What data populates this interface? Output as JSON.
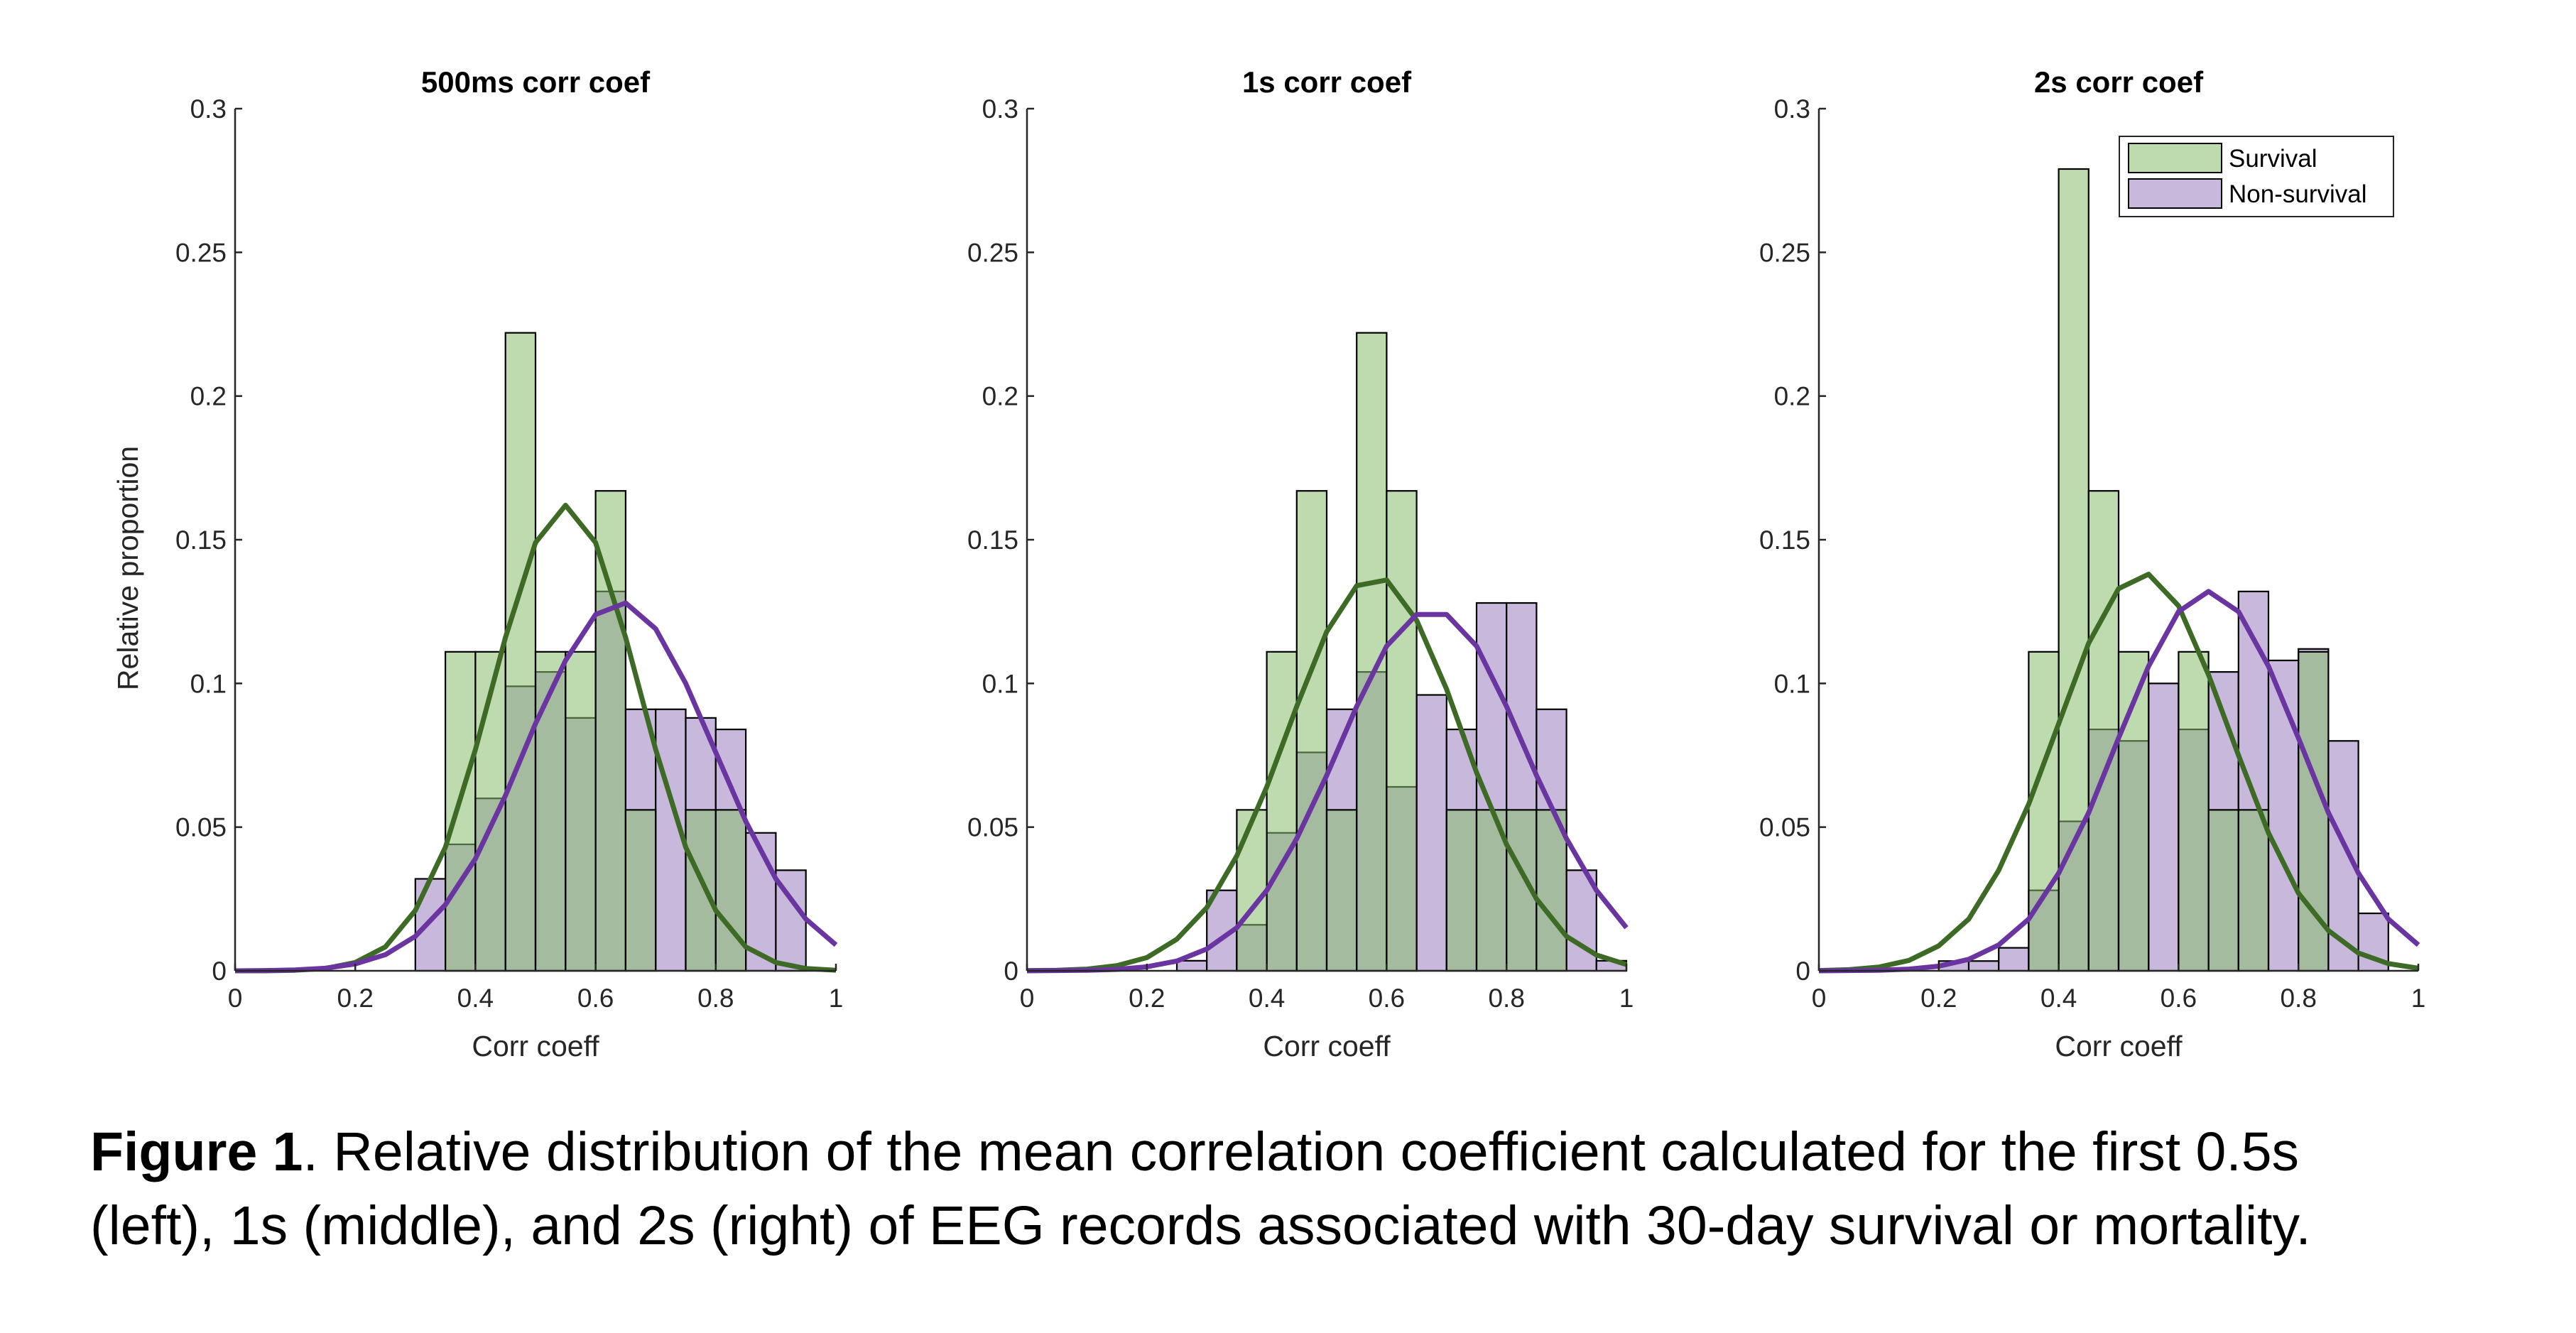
{
  "colors": {
    "survival_fill": "#86bd6e",
    "nonsurvival_fill": "#c8b8dc",
    "survival_curve": "#3d6b25",
    "nonsurvival_curve": "#6a35a0",
    "axis": "#262626"
  },
  "chart_data": [
    {
      "type": "bar",
      "title": "500ms corr coef",
      "xlabel": "Corr coeff",
      "ylabel": "Relative proportion",
      "xlim": [
        0,
        1
      ],
      "ylim": [
        0,
        0.3
      ],
      "xticks": [
        "0",
        "0.2",
        "0.4",
        "0.6",
        "0.8",
        "1"
      ],
      "yticks": [
        "0",
        "0.05",
        "0.1",
        "0.15",
        "0.2",
        "0.25",
        "0.3"
      ],
      "grid": false,
      "bin_width": 0.05,
      "bin_starts": [
        0.3,
        0.35,
        0.4,
        0.45,
        0.5,
        0.55,
        0.6,
        0.65,
        0.7,
        0.75,
        0.8,
        0.85,
        0.9
      ],
      "series": [
        {
          "name": "Survival",
          "values": [
            0,
            0.111,
            0.111,
            0.222,
            0.111,
            0.111,
            0.167,
            0.056,
            0,
            0.056,
            0.056,
            0,
            0
          ]
        },
        {
          "name": "Non-survival",
          "values": [
            0.032,
            0.044,
            0.06,
            0.099,
            0.104,
            0.088,
            0.132,
            0.091,
            0.091,
            0.088,
            0.084,
            0.048,
            0.035
          ]
        }
      ],
      "fit_x": [
        0,
        0.05,
        0.1,
        0.15,
        0.2,
        0.25,
        0.3,
        0.35,
        0.4,
        0.45,
        0.5,
        0.55,
        0.6,
        0.65,
        0.7,
        0.75,
        0.8,
        0.85,
        0.9,
        0.95,
        1
      ],
      "fits": [
        {
          "series": "Survival",
          "y": [
            0,
            0,
            0.0002,
            0.0008,
            0.0029,
            0.0083,
            0.021,
            0.043,
            0.077,
            0.116,
            0.149,
            0.162,
            0.149,
            0.116,
            0.077,
            0.043,
            0.021,
            0.0083,
            0.0029,
            0.0008,
            0.0002
          ]
        },
        {
          "series": "Non-survival",
          "y": [
            0,
            0.0001,
            0.0003,
            0.0009,
            0.0024,
            0.0056,
            0.012,
            0.023,
            0.039,
            0.061,
            0.086,
            0.108,
            0.124,
            0.128,
            0.119,
            0.1,
            0.076,
            0.052,
            0.032,
            0.018,
            0.009
          ]
        }
      ]
    },
    {
      "type": "bar",
      "title": "1s corr coef",
      "xlabel": "Corr coeff",
      "ylabel": "",
      "xlim": [
        0,
        1
      ],
      "ylim": [
        0,
        0.3
      ],
      "xticks": [
        "0",
        "0.2",
        "0.4",
        "0.6",
        "0.8",
        "1"
      ],
      "yticks": [
        "0",
        "0.05",
        "0.1",
        "0.15",
        "0.2",
        "0.25",
        "0.3"
      ],
      "grid": false,
      "bin_width": 0.05,
      "bin_starts": [
        0.25,
        0.3,
        0.35,
        0.4,
        0.45,
        0.5,
        0.55,
        0.6,
        0.65,
        0.7,
        0.75,
        0.8,
        0.85,
        0.9,
        0.95
      ],
      "series": [
        {
          "name": "Survival",
          "values": [
            0,
            0,
            0.056,
            0.111,
            0.167,
            0.056,
            0.222,
            0.167,
            0,
            0.056,
            0.056,
            0.056,
            0.056,
            0,
            0
          ]
        },
        {
          "name": "Non-survival",
          "values": [
            0.0035,
            0.028,
            0.016,
            0.048,
            0.076,
            0.091,
            0.104,
            0.064,
            0.096,
            0.084,
            0.128,
            0.128,
            0.091,
            0.035,
            0.0035
          ]
        }
      ],
      "fit_x": [
        0,
        0.05,
        0.1,
        0.15,
        0.2,
        0.25,
        0.3,
        0.35,
        0.4,
        0.45,
        0.5,
        0.55,
        0.6,
        0.65,
        0.7,
        0.75,
        0.8,
        0.85,
        0.9,
        0.95,
        1
      ],
      "fits": [
        {
          "series": "Survival",
          "y": [
            0.0001,
            0.0002,
            0.0006,
            0.0018,
            0.0046,
            0.011,
            0.022,
            0.04,
            0.064,
            0.092,
            0.118,
            0.134,
            0.136,
            0.122,
            0.098,
            0.069,
            0.044,
            0.025,
            0.012,
            0.0055,
            0.0022
          ]
        },
        {
          "series": "Non-survival",
          "y": [
            0,
            0.0001,
            0.0002,
            0.0005,
            0.0014,
            0.0034,
            0.0076,
            0.015,
            0.028,
            0.046,
            0.068,
            0.092,
            0.113,
            0.124,
            0.124,
            0.113,
            0.092,
            0.068,
            0.046,
            0.028,
            0.015
          ]
        }
      ]
    },
    {
      "type": "bar",
      "title": "2s corr coef",
      "xlabel": "Corr coeff",
      "ylabel": "",
      "xlim": [
        0,
        1
      ],
      "ylim": [
        0,
        0.3
      ],
      "xticks": [
        "0",
        "0.2",
        "0.4",
        "0.6",
        "0.8",
        "1"
      ],
      "yticks": [
        "0",
        "0.05",
        "0.1",
        "0.15",
        "0.2",
        "0.25",
        "0.3"
      ],
      "grid": false,
      "bin_width": 0.05,
      "bin_starts": [
        0.2,
        0.25,
        0.3,
        0.35,
        0.4,
        0.45,
        0.5,
        0.55,
        0.6,
        0.65,
        0.7,
        0.75,
        0.8,
        0.85,
        0.9
      ],
      "series": [
        {
          "name": "Survival",
          "values": [
            0,
            0,
            0,
            0.111,
            0.279,
            0.167,
            0.111,
            0,
            0.111,
            0.056,
            0.056,
            0,
            0.111,
            0,
            0
          ]
        },
        {
          "name": "Non-survival",
          "values": [
            0.0034,
            0.0034,
            0.008,
            0.028,
            0.052,
            0.084,
            0.08,
            0.1,
            0.084,
            0.104,
            0.132,
            0.108,
            0.112,
            0.08,
            0.02
          ]
        }
      ],
      "fit_x": [
        0,
        0.05,
        0.1,
        0.15,
        0.2,
        0.25,
        0.3,
        0.35,
        0.4,
        0.45,
        0.5,
        0.55,
        0.6,
        0.65,
        0.7,
        0.75,
        0.8,
        0.85,
        0.9,
        0.95,
        1
      ],
      "fits": [
        {
          "series": "Survival",
          "y": [
            0.0001,
            0.0004,
            0.0013,
            0.0036,
            0.0087,
            0.018,
            0.035,
            0.058,
            0.086,
            0.114,
            0.133,
            0.138,
            0.127,
            0.103,
            0.075,
            0.048,
            0.027,
            0.014,
            0.0062,
            0.0025,
            0.0009
          ]
        },
        {
          "series": "Non-survival",
          "y": [
            0,
            0.0001,
            0.0002,
            0.0006,
            0.0016,
            0.004,
            0.009,
            0.018,
            0.034,
            0.055,
            0.081,
            0.106,
            0.125,
            0.132,
            0.125,
            0.106,
            0.081,
            0.055,
            0.034,
            0.018,
            0.009
          ]
        }
      ],
      "legend": {
        "position": "top-right",
        "entries": [
          "Survival",
          "Non-survival"
        ]
      }
    }
  ],
  "caption": {
    "label": "Figure 1",
    "line1": ". Relative distribution of the mean correlation coefficient calculated for the first 0.5s",
    "line2": "(left), 1s (middle), and 2s (right) of EEG records associated with 30-day survival or mortality."
  }
}
